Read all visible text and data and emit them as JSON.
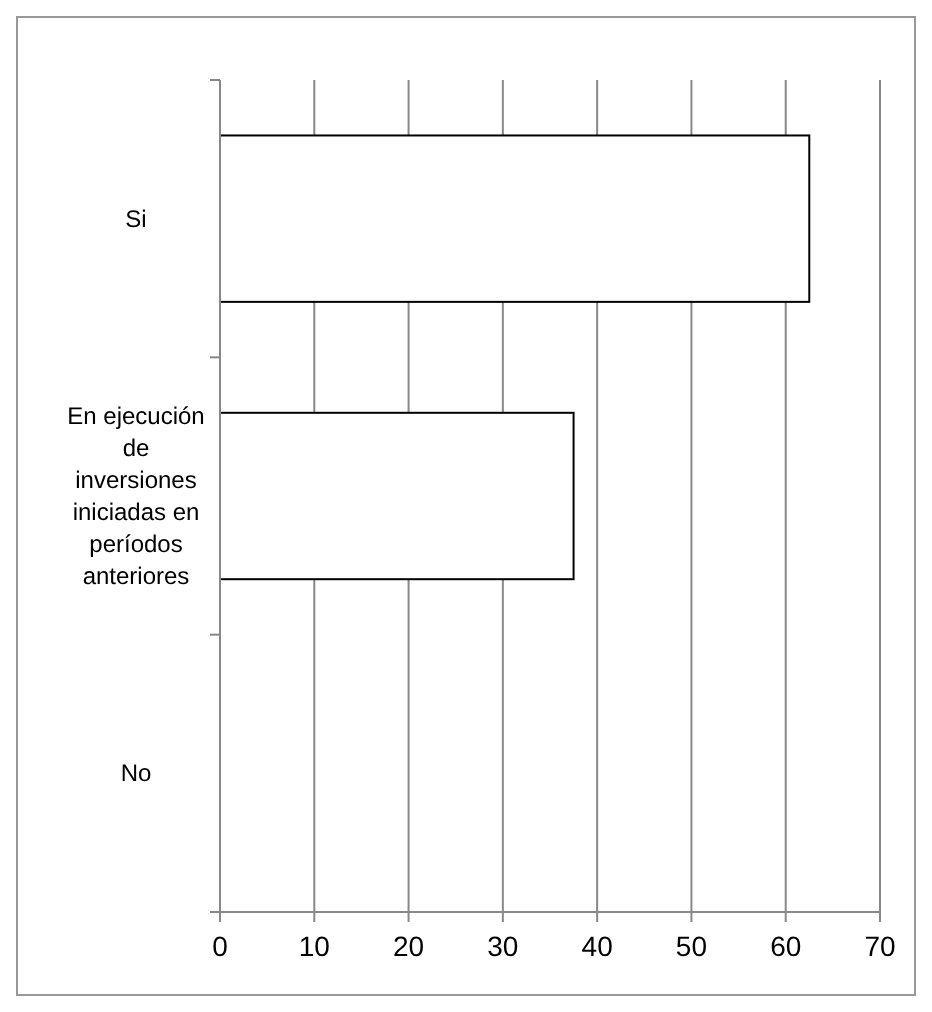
{
  "chart_data": {
    "type": "bar",
    "orientation": "horizontal",
    "categories": [
      "Si",
      "En ejecución de inversiones iniciadas en períodos anteriores",
      "No"
    ],
    "values": [
      62.5,
      37.5,
      0
    ],
    "color": "#ffffff",
    "xlim": [
      0,
      70
    ],
    "xticks": [
      0,
      10,
      20,
      30,
      40,
      50,
      60,
      70
    ],
    "grid": "x"
  }
}
